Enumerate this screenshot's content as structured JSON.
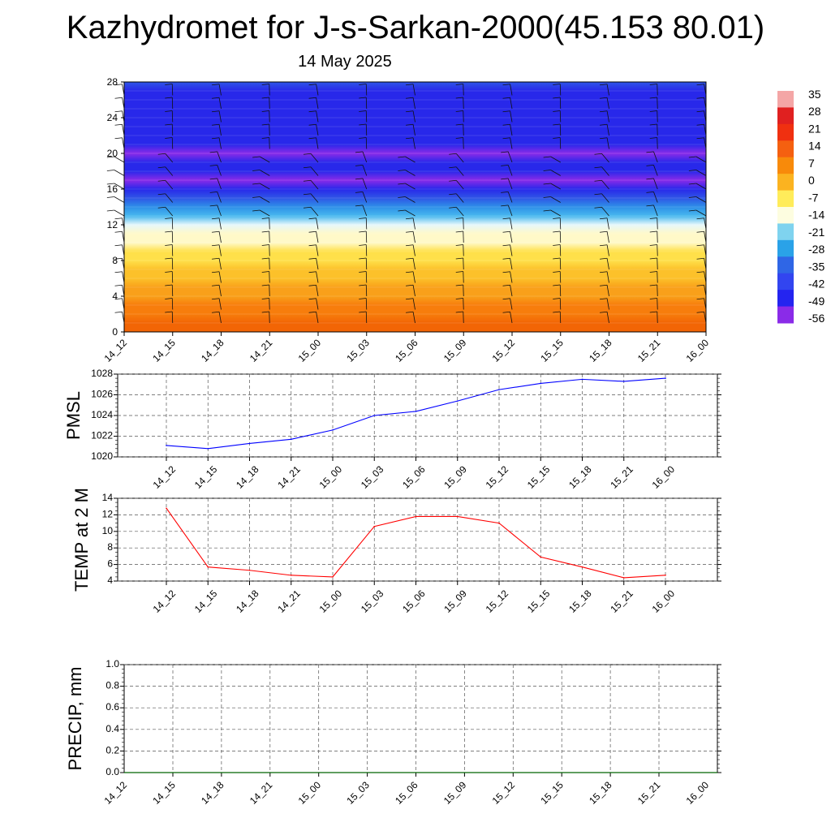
{
  "title": "Kazhydromet for J-s-Sarkan-2000(45.153 80.01)",
  "subtitle": "14 May 2025",
  "time_labels": [
    "14_12",
    "14_15",
    "14_18",
    "14_21",
    "15_00",
    "15_03",
    "15_06",
    "15_09",
    "15_12",
    "15_15",
    "15_18",
    "15_21",
    "16_00"
  ],
  "chart_data": [
    {
      "type": "heatmap",
      "title": "",
      "description_of_fill": "vertical temperature cross-section with wind barbs",
      "x": [
        "14_12",
        "14_15",
        "14_18",
        "14_21",
        "15_00",
        "15_03",
        "15_06",
        "15_09",
        "15_12",
        "15_15",
        "15_18",
        "15_21",
        "16_00"
      ],
      "y_ticks": [
        0,
        4,
        8,
        12,
        16,
        20,
        24,
        28
      ],
      "ylim": [
        0,
        28
      ],
      "levels": [
        0,
        1,
        2,
        3,
        4,
        5,
        6,
        7,
        8,
        9,
        10,
        11,
        12,
        13,
        14,
        15,
        16,
        17,
        18,
        19,
        20,
        21,
        22,
        23,
        24,
        25,
        26,
        27,
        28
      ],
      "temperature_by_level": [
        18,
        16,
        12,
        9,
        5,
        2,
        -2,
        -5,
        -8,
        -10,
        -13,
        -16,
        -21,
        -30,
        -40,
        -48,
        -56,
        -58,
        -57,
        -56,
        -58,
        -57,
        -54,
        -52,
        -53,
        -53,
        -52,
        -51,
        -50
      ],
      "colorbar": {
        "labels": [
          "35",
          "28",
          "21",
          "14",
          "7",
          "0",
          "-7",
          "-14",
          "-21",
          "-28",
          "-35",
          "-42",
          "-49",
          "-56"
        ],
        "colors": [
          "#f4a6a6",
          "#e02020",
          "#f03010",
          "#f56010",
          "#f88a0a",
          "#fbb320",
          "#ffec5a",
          "#fdfde0",
          "#7fd3ef",
          "#2aa2e8",
          "#2f66e6",
          "#3245f0",
          "#2424f0",
          "#8a2be8"
        ]
      },
      "grid": false
    },
    {
      "type": "line",
      "ylabel": "PMSL",
      "ylim": [
        1020,
        1028
      ],
      "y_ticks": [
        1020,
        1022,
        1024,
        1026,
        1028
      ],
      "x": [
        "14_12",
        "14_15",
        "14_18",
        "14_21",
        "15_00",
        "15_03",
        "15_06",
        "15_09",
        "15_12",
        "15_15",
        "15_18",
        "15_21",
        "16_00"
      ],
      "series": [
        {
          "values": [
            1021.1,
            1020.8,
            1021.3,
            1021.7,
            1022.6,
            1024.0,
            1024.4,
            1025.4,
            1026.5,
            1027.1,
            1027.5,
            1027.3,
            1027.6
          ],
          "color": "#0000ff"
        }
      ],
      "grid": true
    },
    {
      "type": "line",
      "ylabel": "TEMP at 2 M",
      "ylim": [
        4,
        14
      ],
      "y_ticks": [
        4,
        6,
        8,
        10,
        12,
        14
      ],
      "x": [
        "14_12",
        "14_15",
        "14_18",
        "14_21",
        "15_00",
        "15_03",
        "15_06",
        "15_09",
        "15_12",
        "15_15",
        "15_18",
        "15_21",
        "16_00"
      ],
      "series": [
        {
          "values": [
            12.8,
            5.7,
            5.3,
            4.7,
            4.5,
            10.6,
            11.8,
            11.8,
            11.0,
            6.9,
            5.7,
            4.4,
            4.7
          ],
          "color": "#ff0000"
        }
      ],
      "grid": true
    },
    {
      "type": "line",
      "ylabel": "PRECIP, mm",
      "ylim": [
        0.0,
        1.0
      ],
      "y_ticks": [
        "0.0",
        "0.2",
        "0.4",
        "0.6",
        "0.8",
        "1.0"
      ],
      "x": [
        "14_12",
        "14_15",
        "14_18",
        "14_21",
        "15_00",
        "15_03",
        "15_06",
        "15_09",
        "15_12",
        "15_15",
        "15_18",
        "15_21",
        "16_00"
      ],
      "series": [
        {
          "values": [
            0,
            0,
            0,
            0,
            0,
            0,
            0,
            0,
            0,
            0,
            0,
            0,
            0
          ],
          "color": "#006400"
        }
      ],
      "grid": true
    }
  ]
}
